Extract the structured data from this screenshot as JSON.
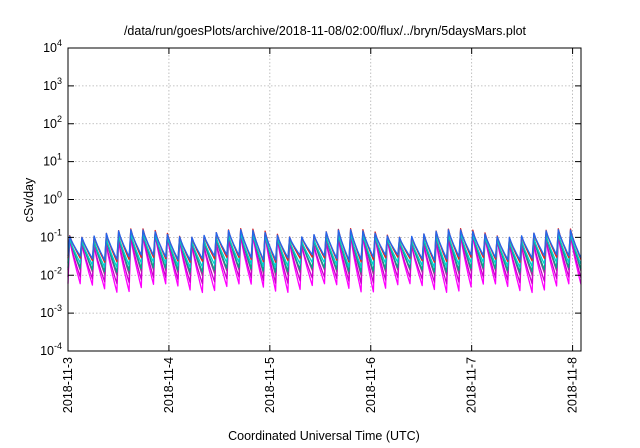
{
  "chart_data": {
    "type": "line",
    "title": "/data/run/goesPlots/archive/2018-11-08/02:00/flux/../bryn/5daysMars.plot",
    "xlabel": "Coordinated Universal Time (UTC)",
    "ylabel": "cSv/day",
    "y_scale": "log",
    "ylim": [
      0.0001,
      10000
    ],
    "xlim": [
      "2018-11-03T00:00",
      "2018-11-08T02:00"
    ],
    "grid": true,
    "x_ticks": [
      "2018-11-3",
      "2018-11-4",
      "2018-11-5",
      "2018-11-6",
      "2018-11-7",
      "2018-11-8"
    ],
    "y_ticks": [
      {
        "value": 0.0001,
        "base": "10",
        "exp": "-4"
      },
      {
        "value": 0.001,
        "base": "10",
        "exp": "-3"
      },
      {
        "value": 0.01,
        "base": "10",
        "exp": "-2"
      },
      {
        "value": 0.1,
        "base": "10",
        "exp": "-1"
      },
      {
        "value": 1,
        "base": "10",
        "exp": "0"
      },
      {
        "value": 10,
        "base": "10",
        "exp": "1"
      },
      {
        "value": 100,
        "base": "10",
        "exp": "2"
      },
      {
        "value": 1000,
        "base": "10",
        "exp": "3"
      },
      {
        "value": 10000,
        "base": "10",
        "exp": "4"
      }
    ],
    "sawtooth_cycles": 42,
    "series": [
      {
        "color": "#ff00ff",
        "peak": [
          0.12,
          0.06
        ],
        "trough": [
          0.0035,
          0.006
        ]
      },
      {
        "color": "#cc00cc",
        "peak": [
          0.12,
          0.06
        ],
        "trough": [
          0.006,
          0.009
        ]
      },
      {
        "color": "#993399",
        "peak": [
          0.14,
          0.08
        ],
        "trough": [
          0.01,
          0.014
        ]
      },
      {
        "color": "#00aa88",
        "peak": [
          0.14,
          0.08
        ],
        "trough": [
          0.012,
          0.016
        ]
      },
      {
        "color": "#00cccc",
        "peak": [
          0.13,
          0.08
        ],
        "trough": [
          0.016,
          0.022
        ]
      },
      {
        "color": "#dd2222",
        "peak": [
          0.17,
          0.1
        ],
        "trough": [
          0.022,
          0.03
        ]
      },
      {
        "color": "#2266ee",
        "peak": [
          0.16,
          0.1
        ],
        "trough": [
          0.025,
          0.035
        ]
      }
    ]
  }
}
